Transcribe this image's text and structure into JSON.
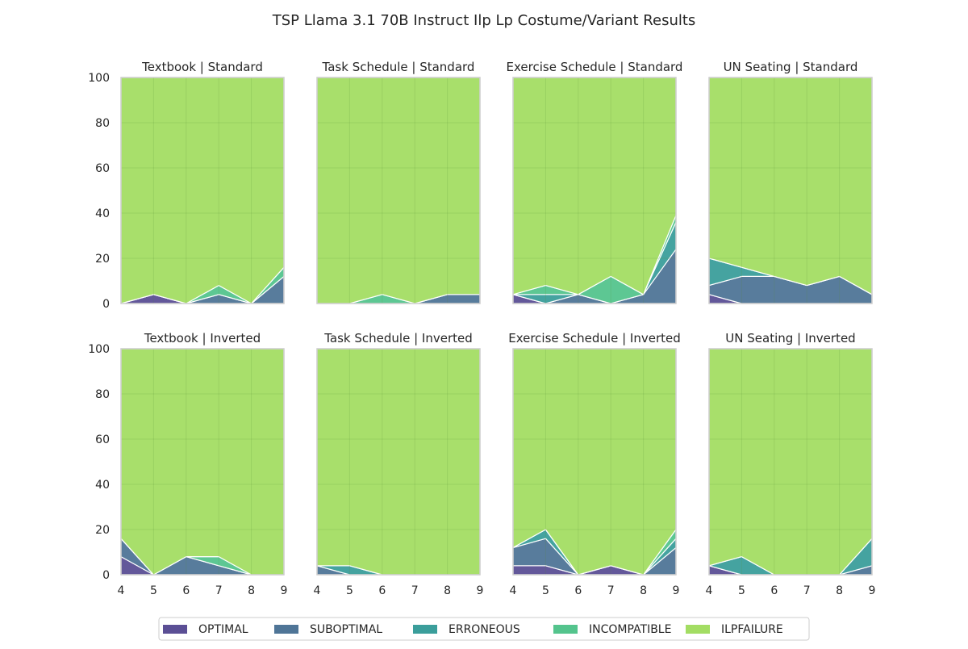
{
  "chart_data": {
    "type": "area",
    "title": "TSP Llama 3.1 70B Instruct Ilp Lp Costume/Variant Results",
    "x": [
      4,
      5,
      6,
      7,
      8,
      9
    ],
    "xticks": [
      "4",
      "5",
      "6",
      "7",
      "8",
      "9"
    ],
    "yticks": [
      "0",
      "20",
      "40",
      "60",
      "80",
      "100"
    ],
    "xlim": [
      4,
      9
    ],
    "ylim": [
      0,
      100
    ],
    "grid": true,
    "stacked": true,
    "legend_position": "bottom-center",
    "legend": [
      "OPTIMAL",
      "SUBOPTIMAL",
      "ERRONEOUS",
      "INCOMPATIBLE",
      "ILPFAILURE"
    ],
    "colors": {
      "OPTIMAL": "#5b4f95",
      "SUBOPTIMAL": "#4f7597",
      "ERRONEOUS": "#3b9e9b",
      "INCOMPATIBLE": "#54c48d",
      "ILPFAILURE": "#a3dd63"
    },
    "panels": [
      {
        "title": "Textbook | Standard",
        "series": {
          "OPTIMAL": [
            0,
            4,
            0,
            0,
            0,
            0
          ],
          "SUBOPTIMAL": [
            0,
            0,
            0,
            4,
            0,
            12
          ],
          "ERRONEOUS": [
            0,
            0,
            0,
            0,
            0,
            0
          ],
          "INCOMPATIBLE": [
            0,
            0,
            0,
            4,
            0,
            4
          ],
          "ILPFAILURE": [
            100,
            96,
            100,
            92,
            100,
            84
          ]
        }
      },
      {
        "title": "Task Schedule | Standard",
        "series": {
          "OPTIMAL": [
            0,
            0,
            0,
            0,
            0,
            0
          ],
          "SUBOPTIMAL": [
            0,
            0,
            0,
            0,
            4,
            4
          ],
          "ERRONEOUS": [
            0,
            0,
            0,
            0,
            0,
            0
          ],
          "INCOMPATIBLE": [
            0,
            0,
            4,
            0,
            0,
            0
          ],
          "ILPFAILURE": [
            100,
            100,
            96,
            100,
            96,
            96
          ]
        }
      },
      {
        "title": "Exercise Schedule | Standard",
        "series": {
          "OPTIMAL": [
            4,
            0,
            0,
            0,
            0,
            0
          ],
          "SUBOPTIMAL": [
            0,
            0,
            4,
            0,
            4,
            24
          ],
          "ERRONEOUS": [
            0,
            4,
            0,
            0,
            0,
            12
          ],
          "INCOMPATIBLE": [
            0,
            4,
            0,
            12,
            0,
            3
          ],
          "ILPFAILURE": [
            96,
            92,
            96,
            88,
            96,
            61
          ]
        }
      },
      {
        "title": "UN Seating | Standard",
        "series": {
          "OPTIMAL": [
            4,
            0,
            0,
            0,
            0,
            0
          ],
          "SUBOPTIMAL": [
            4,
            12,
            12,
            8,
            12,
            4
          ],
          "ERRONEOUS": [
            12,
            4,
            0,
            0,
            0,
            0
          ],
          "INCOMPATIBLE": [
            0,
            0,
            0,
            0,
            0,
            0
          ],
          "ILPFAILURE": [
            80,
            84,
            88,
            92,
            88,
            96
          ]
        }
      },
      {
        "title": "Textbook | Inverted",
        "series": {
          "OPTIMAL": [
            8,
            0,
            0,
            0,
            0,
            0
          ],
          "SUBOPTIMAL": [
            8,
            0,
            8,
            4,
            0,
            0
          ],
          "ERRONEOUS": [
            0,
            0,
            0,
            0,
            0,
            0
          ],
          "INCOMPATIBLE": [
            0,
            0,
            0,
            4,
            0,
            0
          ],
          "ILPFAILURE": [
            84,
            100,
            92,
            92,
            100,
            100
          ]
        }
      },
      {
        "title": "Task Schedule | Inverted",
        "series": {
          "OPTIMAL": [
            0,
            0,
            0,
            0,
            0,
            0
          ],
          "SUBOPTIMAL": [
            4,
            0,
            0,
            0,
            0,
            0
          ],
          "ERRONEOUS": [
            0,
            4,
            0,
            0,
            0,
            0
          ],
          "INCOMPATIBLE": [
            0,
            0,
            0,
            0,
            0,
            0
          ],
          "ILPFAILURE": [
            96,
            96,
            100,
            100,
            100,
            100
          ]
        }
      },
      {
        "title": "Exercise Schedule | Inverted",
        "series": {
          "OPTIMAL": [
            4,
            4,
            0,
            4,
            0,
            0
          ],
          "SUBOPTIMAL": [
            8,
            12,
            0,
            0,
            0,
            12
          ],
          "ERRONEOUS": [
            0,
            4,
            0,
            0,
            0,
            4
          ],
          "INCOMPATIBLE": [
            0,
            0,
            0,
            0,
            0,
            4
          ],
          "ILPFAILURE": [
            88,
            80,
            100,
            96,
            100,
            80
          ]
        }
      },
      {
        "title": "UN Seating | Inverted",
        "series": {
          "OPTIMAL": [
            4,
            0,
            0,
            0,
            0,
            0
          ],
          "SUBOPTIMAL": [
            0,
            0,
            0,
            0,
            0,
            4
          ],
          "ERRONEOUS": [
            0,
            8,
            0,
            0,
            0,
            12
          ],
          "INCOMPATIBLE": [
            0,
            0,
            0,
            0,
            0,
            0
          ],
          "ILPFAILURE": [
            96,
            92,
            100,
            100,
            100,
            84
          ]
        }
      }
    ]
  }
}
